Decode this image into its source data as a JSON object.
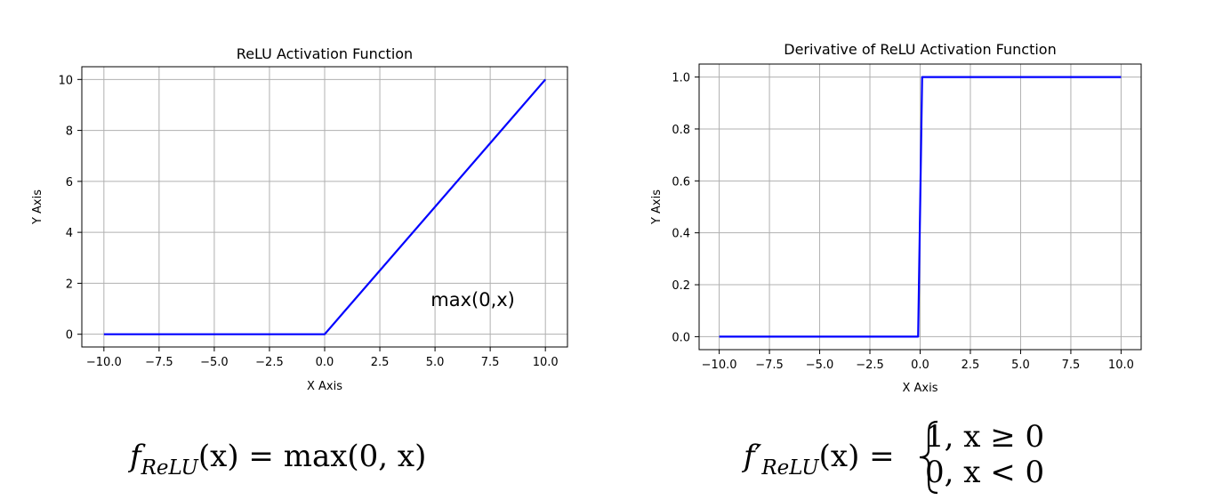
{
  "chart_data": [
    {
      "type": "line",
      "title": "ReLU Activation Function",
      "xlabel": "X Axis",
      "ylabel": "Y Axis",
      "xlim": [
        -11,
        11
      ],
      "ylim": [
        -0.5,
        10.5
      ],
      "xticks": [
        "−10.0",
        "−7.5",
        "−5.0",
        "−2.5",
        "0.0",
        "2.5",
        "5.0",
        "7.5",
        "10.0"
      ],
      "xtick_values": [
        -10,
        -7.5,
        -5,
        -2.5,
        0,
        2.5,
        5,
        7.5,
        10
      ],
      "yticks": [
        "0",
        "2",
        "4",
        "6",
        "8",
        "10"
      ],
      "ytick_values": [
        0,
        2,
        4,
        6,
        8,
        10
      ],
      "grid": true,
      "series": [
        {
          "color": "#0000ff",
          "x": [
            -10,
            0,
            10
          ],
          "y": [
            0,
            0,
            10
          ]
        }
      ],
      "annotation": "max(0,x)",
      "annotation_at": [
        4,
        1.1
      ]
    },
    {
      "type": "line",
      "title": "Derivative of ReLU Activation Function",
      "xlabel": "X Axis",
      "ylabel": "Y Axis",
      "xlim": [
        -11,
        11
      ],
      "ylim": [
        -0.05,
        1.05
      ],
      "xticks": [
        "−10.0",
        "−7.5",
        "−5.0",
        "−2.5",
        "0.0",
        "2.5",
        "5.0",
        "7.5",
        "10.0"
      ],
      "xtick_values": [
        -10,
        -7.5,
        -5,
        -2.5,
        0,
        2.5,
        5,
        7.5,
        10
      ],
      "yticks": [
        "0.0",
        "0.2",
        "0.4",
        "0.6",
        "0.8",
        "1.0"
      ],
      "ytick_values": [
        0,
        0.2,
        0.4,
        0.6,
        0.8,
        1.0
      ],
      "grid": true,
      "series": [
        {
          "color": "#0000ff",
          "x": [
            -10,
            -0.1,
            0.1,
            10
          ],
          "y": [
            0,
            0,
            1,
            1
          ]
        }
      ]
    }
  ],
  "formulas": {
    "relu": {
      "f": "f",
      "sub": "ReLU",
      "rest": "(x) = max(0, x)"
    },
    "derivative": {
      "f": "f′",
      "sub": "ReLU",
      "lhs_rest": "(x) =",
      "case1": "1, x ≥ 0",
      "case2": "0, x < 0"
    }
  }
}
